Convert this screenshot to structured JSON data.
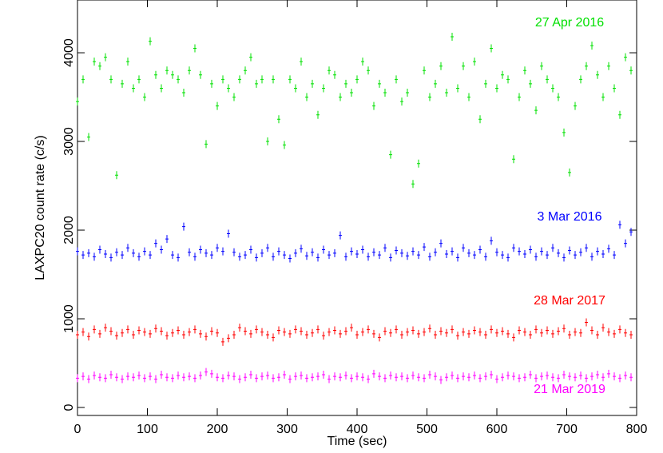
{
  "chart_data": {
    "type": "scatter",
    "x_label": "Time (sec)",
    "y_label": "LAXPC20 count rate (c/s)",
    "xlim": [
      0,
      800
    ],
    "ylim": [
      -90,
      4595
    ],
    "xticks": [
      0,
      100,
      200,
      300,
      400,
      500,
      600,
      700,
      800
    ],
    "yticks": [
      0,
      1000,
      2000,
      3000,
      4000
    ],
    "x": [
      0,
      8,
      16,
      24,
      32,
      40,
      48,
      56,
      64,
      72,
      80,
      88,
      96,
      104,
      112,
      120,
      128,
      136,
      144,
      152,
      160,
      168,
      176,
      184,
      192,
      200,
      208,
      216,
      224,
      232,
      240,
      248,
      256,
      264,
      272,
      280,
      288,
      296,
      304,
      312,
      320,
      328,
      336,
      344,
      352,
      360,
      368,
      376,
      384,
      392,
      400,
      408,
      416,
      424,
      432,
      440,
      448,
      456,
      464,
      472,
      480,
      488,
      496,
      504,
      512,
      520,
      528,
      536,
      544,
      552,
      560,
      568,
      576,
      584,
      592,
      600,
      608,
      616,
      624,
      632,
      640,
      648,
      656,
      664,
      672,
      680,
      688,
      696,
      704,
      712,
      720,
      728,
      736,
      744,
      752,
      760,
      768,
      776,
      784,
      792
    ],
    "series": [
      {
        "name": "27 Apr 2016",
        "color": "#00e000",
        "values": [
          3450,
          3700,
          3050,
          3900,
          3850,
          3950,
          3700,
          2620,
          3650,
          3900,
          3600,
          3700,
          3500,
          4130,
          3750,
          3600,
          3800,
          3750,
          3700,
          3550,
          3800,
          4050,
          3750,
          2970,
          3650,
          3400,
          3700,
          3600,
          3500,
          3700,
          3800,
          3950,
          3650,
          3700,
          3000,
          3700,
          3250,
          2960,
          3700,
          3600,
          3900,
          3500,
          3650,
          3300,
          3600,
          3800,
          3750,
          3500,
          3650,
          3550,
          3700,
          3900,
          3800,
          3400,
          3650,
          3550,
          2850,
          3700,
          3450,
          3550,
          2520,
          2750,
          3800,
          3500,
          3650,
          3850,
          3550,
          4180,
          3600,
          3850,
          3500,
          3900,
          3250,
          3650,
          4050,
          3600,
          3750,
          3700,
          2800,
          3500,
          3800,
          3650,
          3350,
          3850,
          3700,
          3600,
          3500,
          3100,
          2650,
          3400,
          3700,
          3850,
          4080,
          3750,
          3500,
          3850,
          3600,
          3300,
          3950,
          3800
        ]
      },
      {
        "name": "3 Mar 2016",
        "color": "#0000ff",
        "values": [
          1760,
          1720,
          1740,
          1700,
          1780,
          1730,
          1690,
          1750,
          1720,
          1800,
          1740,
          1700,
          1760,
          1720,
          1850,
          1780,
          1900,
          1720,
          1690,
          2040,
          1750,
          1700,
          1780,
          1740,
          1720,
          1800,
          1760,
          1960,
          1750,
          1700,
          1720,
          1780,
          1690,
          1740,
          1800,
          1700,
          1760,
          1720,
          1680,
          1740,
          1790,
          1710,
          1750,
          1690,
          1780,
          1720,
          1740,
          1940,
          1700,
          1760,
          1730,
          1780,
          1700,
          1750,
          1720,
          1800,
          1690,
          1770,
          1740,
          1710,
          1760,
          1720,
          1810,
          1700,
          1750,
          1850,
          1730,
          1760,
          1690,
          1800,
          1740,
          1720,
          1780,
          1700,
          1880,
          1750,
          1720,
          1690,
          1800,
          1760,
          1730,
          1780,
          1700,
          1760,
          1720,
          1800,
          1740,
          1690,
          1770,
          1720,
          1750,
          1800,
          1700,
          1760,
          1730,
          1790,
          1720,
          2060,
          1850,
          1980
        ]
      },
      {
        "name": "28 Mar 2017",
        "color": "#ff0000",
        "values": [
          820,
          850,
          800,
          880,
          830,
          900,
          860,
          810,
          840,
          880,
          820,
          870,
          850,
          830,
          890,
          860,
          810,
          840,
          870,
          820,
          850,
          880,
          830,
          800,
          860,
          840,
          740,
          780,
          820,
          900,
          860,
          830,
          880,
          850,
          820,
          790,
          870,
          850,
          830,
          880,
          860,
          820,
          840,
          880,
          810,
          850,
          870,
          830,
          860,
          900,
          820,
          850,
          880,
          830,
          790,
          860,
          840,
          880,
          820,
          850,
          870,
          830,
          850,
          890,
          820,
          860,
          840,
          880,
          810,
          850,
          830,
          870,
          850,
          820,
          880,
          840,
          860,
          830,
          790,
          870,
          850,
          820,
          880,
          840,
          870,
          830,
          860,
          890,
          820,
          850,
          840,
          960,
          870,
          820,
          900,
          850,
          830,
          880,
          840,
          820
        ]
      },
      {
        "name": "21 Mar 2019",
        "color": "#ff00ff",
        "values": [
          330,
          350,
          320,
          360,
          340,
          330,
          370,
          340,
          320,
          350,
          340,
          360,
          330,
          350,
          320,
          370,
          340,
          330,
          360,
          340,
          350,
          330,
          360,
          400,
          380,
          340,
          330,
          360,
          350,
          320,
          340,
          370,
          330,
          350,
          360,
          330,
          340,
          370,
          320,
          350,
          360,
          330,
          340,
          350,
          370,
          320,
          350,
          340,
          360,
          330,
          350,
          340,
          320,
          380,
          350,
          330,
          360,
          340,
          350,
          330,
          360,
          340,
          330,
          370,
          350,
          310,
          340,
          360,
          330,
          350,
          340,
          360,
          330,
          350,
          370,
          320,
          340,
          360,
          350,
          330,
          340,
          370,
          330,
          350,
          360,
          340,
          330,
          370,
          350,
          340,
          360,
          330,
          350,
          370,
          340,
          380,
          350,
          330,
          360,
          340
        ]
      }
    ]
  }
}
